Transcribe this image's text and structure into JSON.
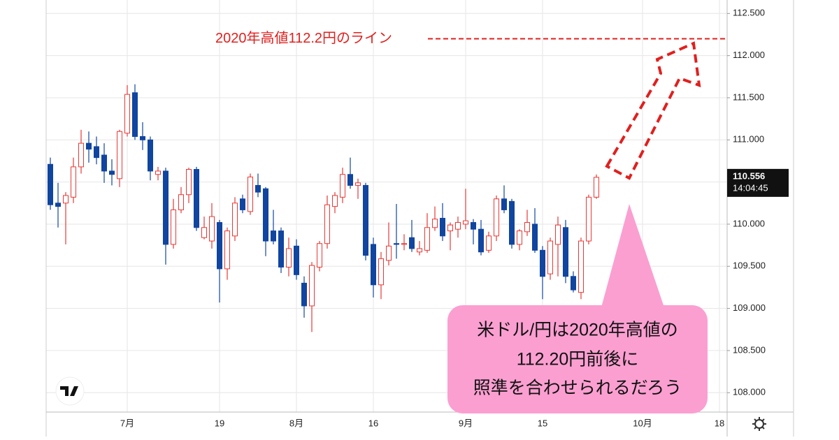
{
  "chart_data": {
    "type": "candlestick",
    "annotation": "2020年高値112.2円のライン",
    "reference_value": 112.2,
    "callout": [
      "米ドル/円は2020年高値の",
      "112.20円前後に",
      "照準を合わせられるだろう"
    ],
    "last_price": 110.556,
    "last_time": "14:04:45",
    "up_color": "#e53935",
    "down_color": "#1045a0",
    "ylim": [
      107.77,
      112.66
    ],
    "yticks": [
      {
        "value": 108,
        "label": "108.000"
      },
      {
        "value": 108.5,
        "label": "108.500"
      },
      {
        "value": 109,
        "label": "109.000"
      },
      {
        "value": 109.5,
        "label": "109.500"
      },
      {
        "value": 110,
        "label": "110.000"
      },
      {
        "value": 110.5,
        "label": "110.500"
      },
      {
        "value": 111,
        "label": "111.000"
      },
      {
        "value": 111.5,
        "label": "111.500"
      },
      {
        "value": 112,
        "label": "112.000"
      },
      {
        "value": 112.5,
        "label": "112.500"
      }
    ],
    "grid": true,
    "categories": [
      null,
      null,
      null,
      null,
      null,
      null,
      null,
      null,
      null,
      null,
      "7月",
      null,
      null,
      null,
      null,
      null,
      null,
      null,
      null,
      null,
      null,
      null,
      "19",
      null,
      null,
      null,
      null,
      null,
      null,
      null,
      null,
      null,
      "8月",
      null,
      null,
      null,
      null,
      null,
      null,
      null,
      null,
      null,
      "16",
      null,
      null,
      null,
      null,
      null,
      null,
      null,
      null,
      null,
      null,
      null,
      "9月",
      null,
      null,
      null,
      null,
      null,
      null,
      null,
      null,
      null,
      "15",
      null,
      null,
      null,
      null,
      null,
      null,
      null,
      null,
      null,
      null,
      null,
      null,
      "10月",
      null,
      null,
      null,
      null,
      null,
      null,
      null,
      null,
      null,
      "18"
    ],
    "open": [
      110.71,
      110.25,
      110.25,
      110.32,
      110.68,
      110.96,
      110.92,
      110.82,
      110.63,
      110.54,
      111.08,
      111.56,
      111.04,
      111.0,
      110.59,
      110.63,
      109.76,
      110.17,
      110.35,
      110.65,
      109.84,
      109.8,
      110.02,
      109.47,
      109.86,
      110.3,
      110.15,
      110.46,
      110.42,
      109.92,
      109.92,
      109.49,
      109.74,
      109.3,
      109.03,
      109.49,
      109.77,
      110.21,
      110.32,
      110.59,
      110.46,
      110.46,
      109.76,
      109.28,
      109.57,
      109.77,
      109.76,
      109.84,
      109.67,
      109.69,
      109.96,
      110.07,
      109.92,
      109.94,
      110.0,
      110.02,
      109.94,
      109.69,
      109.86,
      110.3,
      110.27,
      109.76,
      109.91,
      110.0,
      109.69,
      109.41,
      109.76,
      109.96,
      109.38,
      109.19,
      109.8,
      110.32,
      null,
      null,
      null,
      null,
      null,
      null,
      null,
      null,
      null,
      null,
      null,
      null,
      null,
      null,
      null,
      null
    ],
    "high": [
      110.79,
      110.49,
      110.38,
      110.79,
      111.12,
      111.1,
      111.04,
      110.96,
      110.77,
      111.12,
      111.65,
      111.66,
      111.21,
      111.04,
      110.68,
      110.67,
      110.3,
      110.44,
      110.67,
      110.68,
      110.09,
      110.25,
      110.05,
      109.96,
      110.32,
      110.35,
      110.6,
      110.6,
      110.44,
      110.17,
      109.96,
      109.84,
      109.82,
      109.38,
      109.55,
      109.8,
      110.34,
      110.38,
      110.67,
      110.79,
      110.54,
      110.49,
      109.84,
      109.67,
      110.02,
      110.24,
      109.88,
      110.05,
      109.8,
      110.13,
      110.21,
      110.25,
      110.02,
      110.09,
      110.42,
      110.06,
      110.05,
      109.91,
      110.34,
      110.46,
      110.3,
      109.94,
      110.17,
      110.19,
      109.74,
      109.84,
      110.09,
      110.05,
      109.44,
      109.84,
      110.35,
      110.59,
      null,
      null,
      null,
      null,
      null,
      null,
      null,
      null,
      null,
      null,
      null,
      null,
      null,
      null,
      null,
      null
    ],
    "low": [
      110.17,
      109.96,
      109.76,
      110.25,
      110.6,
      110.73,
      110.71,
      110.49,
      110.46,
      110.44,
      111.04,
      111.0,
      110.88,
      110.52,
      110.52,
      109.52,
      109.71,
      110.13,
      110.25,
      109.92,
      109.82,
      109.71,
      109.07,
      109.34,
      109.8,
      110.13,
      110.11,
      110.32,
      109.62,
      109.76,
      109.42,
      109.38,
      109.34,
      108.89,
      108.72,
      109.44,
      109.71,
      110.13,
      110.25,
      110.42,
      110.3,
      109.57,
      109.13,
      109.11,
      109.51,
      109.59,
      109.69,
      109.67,
      109.63,
      109.66,
      109.92,
      109.8,
      109.69,
      109.84,
      109.94,
      109.76,
      109.63,
      109.66,
      109.8,
      110.13,
      109.71,
      109.69,
      109.86,
      109.66,
      109.11,
      109.34,
      109.38,
      109.3,
      109.19,
      109.11,
      109.76,
      110.3,
      null,
      null,
      null,
      null,
      null,
      null,
      null,
      null,
      null,
      null,
      null,
      null,
      null,
      null,
      null,
      null
    ],
    "close": [
      110.23,
      110.21,
      110.34,
      110.68,
      110.96,
      110.89,
      110.79,
      110.63,
      110.59,
      111.1,
      111.54,
      111.04,
      111.0,
      110.63,
      110.63,
      109.76,
      110.17,
      110.35,
      110.65,
      109.96,
      109.96,
      110.09,
      109.47,
      109.92,
      110.25,
      110.17,
      110.56,
      110.38,
      109.8,
      109.8,
      109.49,
      109.71,
      109.4,
      109.03,
      109.51,
      109.77,
      110.23,
      110.34,
      110.59,
      110.46,
      110.49,
      109.63,
      109.28,
      109.59,
      109.74,
      109.76,
      109.77,
      109.71,
      109.71,
      109.96,
      110.06,
      109.86,
      109.99,
      110.02,
      110.04,
      109.94,
      109.67,
      109.86,
      110.3,
      110.17,
      109.76,
      109.92,
      110.02,
      109.69,
      109.38,
      109.8,
      109.99,
      109.38,
      109.22,
      109.8,
      110.32,
      110.556,
      null,
      null,
      null,
      null,
      null,
      null,
      null,
      null,
      null,
      null,
      null,
      null,
      null,
      null,
      null,
      null
    ]
  }
}
